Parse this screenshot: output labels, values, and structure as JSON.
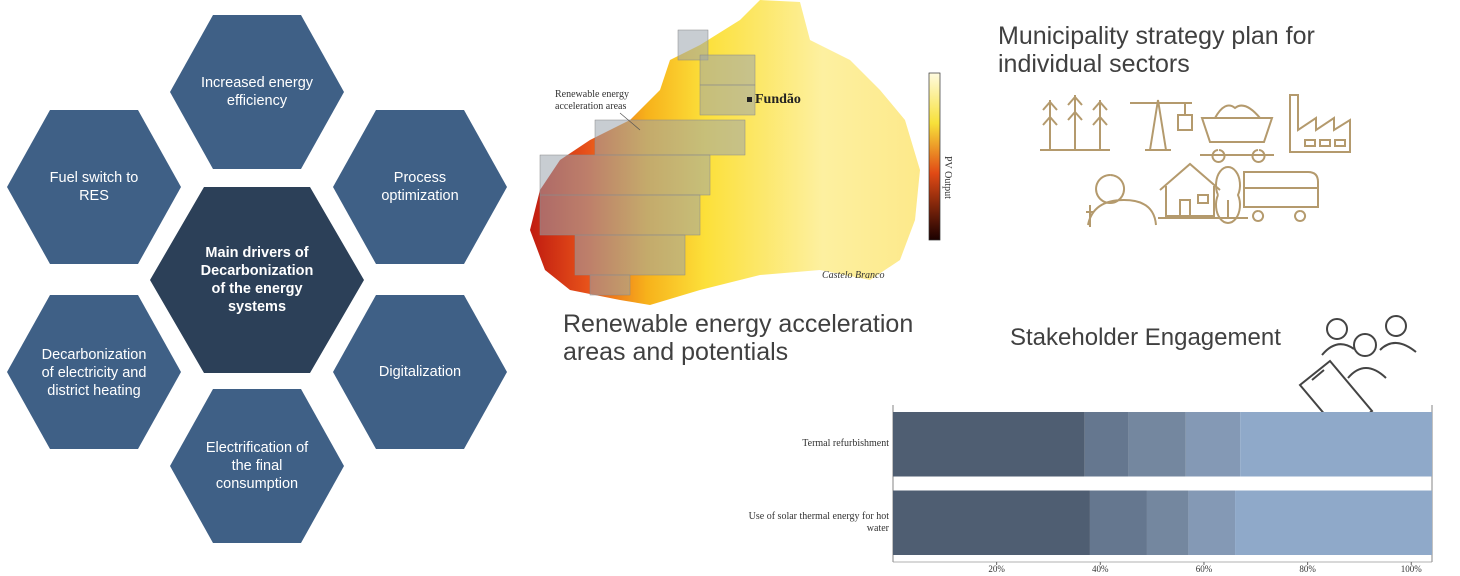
{
  "drivers": {
    "center": "Main drivers of Decarbonization of the energy systems",
    "items": [
      "Increased energy efficiency",
      "Process optimization",
      "Digitalization",
      "Electrification of the final consumption",
      "Decarbonization of electricity and district heating",
      "Fuel switch to RES"
    ]
  },
  "map": {
    "caption": "Renewable energy acceleration areas and potentials",
    "area_label": "Renewable energy acceleration areas",
    "towns": [
      "Fundão",
      "Castelo Branco"
    ],
    "colorbar_label": "PV Output"
  },
  "strategy": {
    "title": "Municipality strategy plan for individual sectors"
  },
  "stakeholder": {
    "title": "Stakeholder Engagement"
  },
  "chart_data": {
    "type": "stacked-bar-horizontal",
    "categories": [
      "Termal refurbishment",
      "Use of solar thermal energy for hot water"
    ],
    "series": [
      {
        "color": "#4f5e72",
        "values": [
          37,
          38
        ]
      },
      {
        "color": "#65778f",
        "values": [
          8.5,
          11
        ]
      },
      {
        "color": "#74879f",
        "values": [
          11,
          8
        ]
      },
      {
        "color": "#8499b5",
        "values": [
          10.5,
          9
        ]
      },
      {
        "color": "#8fa9c9",
        "values": [
          37,
          38
        ]
      }
    ],
    "xlim": [
      0,
      104
    ],
    "xticks": [
      {
        "value": 20,
        "label": "20%"
      },
      {
        "value": 40,
        "label": "40%"
      },
      {
        "value": 60,
        "label": "60%"
      },
      {
        "value": 80,
        "label": "80%"
      },
      {
        "value": 100,
        "label": "100%"
      }
    ]
  }
}
